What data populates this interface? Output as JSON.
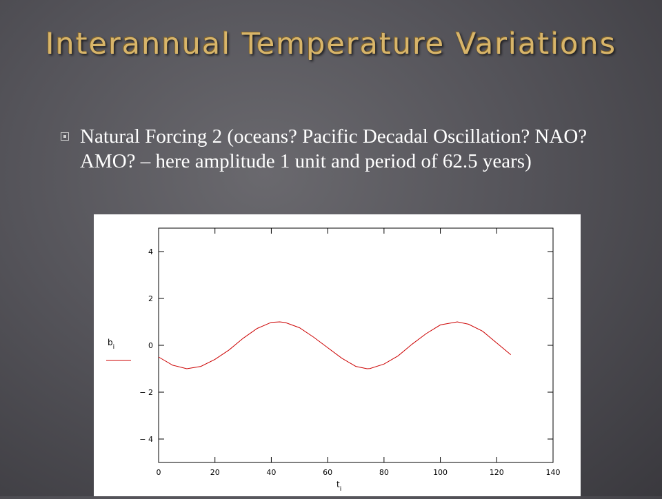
{
  "slide": {
    "title": "Interannual Temperature Variations",
    "bullet": "Natural Forcing 2  (oceans? Pacific Decadal Oscillation?  NAO? AMO? – here amplitude 1 unit and period of 62.5 years)"
  },
  "colors": {
    "title": "#d8b56a",
    "series": "#cc0000"
  },
  "chart_data": {
    "type": "line",
    "xlim": [
      0,
      140
    ],
    "ylim": [
      -5,
      5
    ],
    "xticks": [
      0,
      20,
      40,
      60,
      80,
      100,
      120,
      140
    ],
    "yticks": [
      -4,
      -2,
      0,
      2,
      4
    ],
    "xtick_labels": [
      "0",
      "20",
      "40",
      "60",
      "80",
      "100",
      "120",
      "140"
    ],
    "ytick_labels": [
      "− 4",
      "− 2",
      "0",
      "2",
      "4"
    ],
    "xlabel": {
      "base": "t",
      "sub": "i"
    },
    "ylabel": {
      "base": "b",
      "sub": "i"
    },
    "grid": false,
    "series": [
      {
        "x": [
          0,
          5,
          10,
          15,
          20,
          25,
          30,
          35,
          40,
          43,
          45,
          50,
          55,
          60,
          65,
          70,
          74,
          75,
          80,
          85,
          90,
          95,
          100,
          106,
          110,
          115,
          120,
          125
        ],
        "y": [
          -0.5,
          -0.85,
          -1.0,
          -0.9,
          -0.6,
          -0.2,
          0.3,
          0.72,
          0.98,
          1.0,
          0.97,
          0.75,
          0.35,
          -0.1,
          -0.55,
          -0.9,
          -1.0,
          -0.99,
          -0.8,
          -0.45,
          0.05,
          0.5,
          0.87,
          1.0,
          0.9,
          0.6,
          0.1,
          -0.4
        ]
      }
    ]
  }
}
